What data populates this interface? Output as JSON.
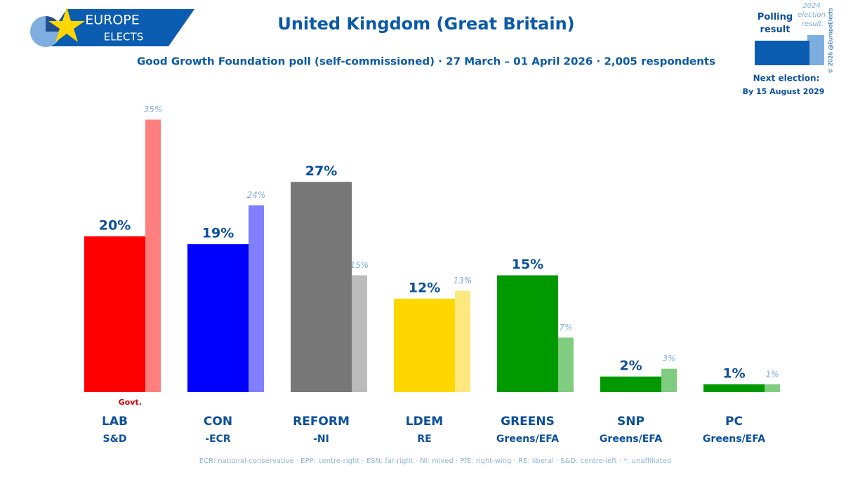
{
  "header": {
    "logo_top": "EUROPE",
    "logo_bottom": "ELECTS",
    "next_election_label": "Next election:",
    "next_election_date": "By 15 August 2029",
    "copyright": "© 2026 @EuropeElects"
  },
  "chart_data": {
    "type": "bar",
    "title": "United Kingdom (Great Britain)",
    "subtitle": "Good Growth Foundation poll (self-commissioned) · 27 March – 01 April 2026 · 2,005 respondents",
    "categories": [
      "LAB",
      "CON",
      "REFORM",
      "LDEM",
      "GREENS",
      "SNP",
      "PC"
    ],
    "groups": [
      "S&D",
      "-ECR",
      "-NI",
      "RE",
      "Greens/EFA",
      "Greens/EFA",
      "Greens/EFA"
    ],
    "annotation": {
      "category": "LAB",
      "text": "Govt."
    },
    "series": [
      {
        "name": "Polling result",
        "legend_color": "#0a5db0",
        "colors": [
          "#ff0000",
          "#0000ff",
          "#777777",
          "#ffd700",
          "#009900",
          "#009900",
          "#009900"
        ],
        "values": [
          20,
          19,
          27,
          12,
          15,
          2,
          1
        ],
        "value_labels": [
          "20%",
          "19%",
          "27%",
          "12%",
          "15%",
          "2%",
          "1%"
        ]
      },
      {
        "name": "2024 election result",
        "legend_color": "#7eaee0",
        "colors": [
          "#ff7f7f",
          "#8080ff",
          "#bbbbbb",
          "#ffe97f",
          "#80cc80",
          "#80cc80",
          "#80cc80"
        ],
        "values": [
          35,
          24,
          15,
          13,
          7,
          3,
          1
        ],
        "value_labels": [
          "35%",
          "24%",
          "15%",
          "13%",
          "7%",
          "3%",
          "1%"
        ]
      }
    ],
    "footnote": "ECR: national-conservative · EPP: centre-right · ESN: far-right · NI: mixed · PfE: right-wing · RE: liberal · S&D: centre-left · *: unaffiliated"
  }
}
